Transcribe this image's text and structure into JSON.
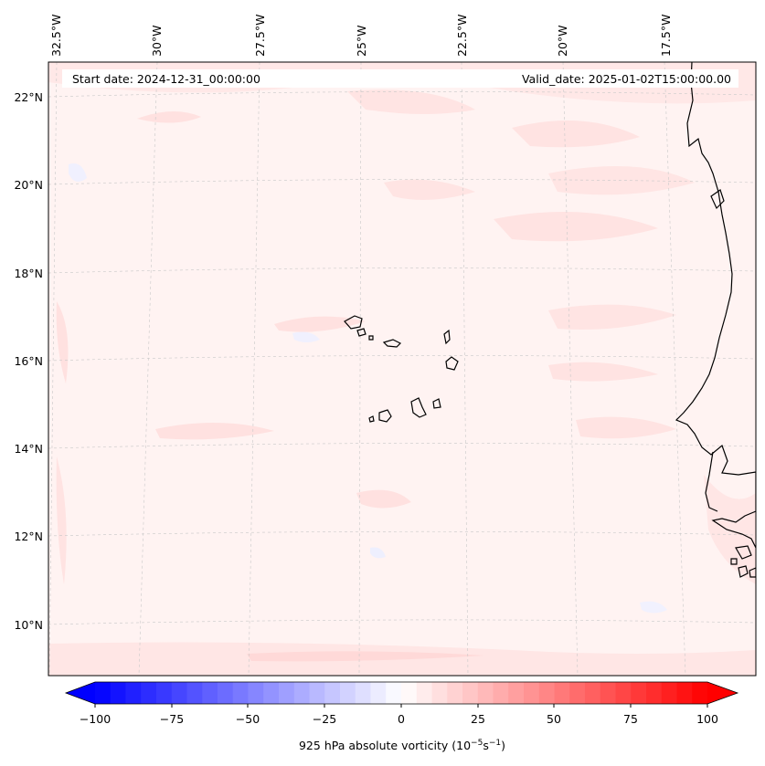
{
  "header": {
    "start_date": "Start date: 2024-12-31_00:00:00",
    "valid_date": "Valid_date: 2025-01-02T15:00:00.00"
  },
  "map": {
    "longitude_labels": [
      "32.5°W",
      "30°W",
      "27.5°W",
      "25°W",
      "22.5°W",
      "20°W",
      "17.5°W"
    ],
    "latitude_labels": [
      "22°N",
      "20°N",
      "18°N",
      "16°N",
      "14°N",
      "12°N",
      "10°N"
    ],
    "coastline_color": "#000000",
    "gridline_color": "#c8c8c8"
  },
  "colorbar": {
    "label_prefix": "925 hPa absolute vorticity (10",
    "label_exp1": "−5",
    "label_mid": "s",
    "label_exp2": "−1",
    "label_suffix": ")",
    "tick_labels": [
      "−100",
      "−75",
      "−50",
      "−25",
      "0",
      "25",
      "50",
      "75",
      "100"
    ],
    "min_color": "#0000ff",
    "max_color": "#ff0000",
    "extend": "both"
  }
}
